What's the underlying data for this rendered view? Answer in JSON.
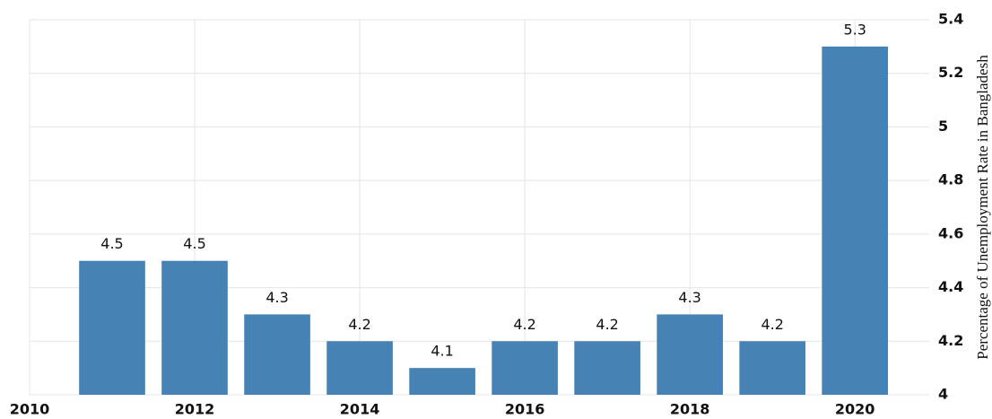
{
  "chart_data": {
    "type": "bar",
    "y_axis_label": "Percentage of Unemployment Rate in Bangladesh",
    "x": [
      2011,
      2012,
      2013,
      2014,
      2015,
      2016,
      2017,
      2018,
      2019,
      2020
    ],
    "values": [
      4.5,
      4.5,
      4.3,
      4.2,
      4.1,
      4.2,
      4.2,
      4.3,
      4.2,
      5.3
    ],
    "color": "#4682b4",
    "xlim": [
      2010,
      2020.9
    ],
    "xticks": [
      2010,
      2012,
      2014,
      2016,
      2018,
      2020
    ],
    "ylim": [
      4,
      5.4
    ],
    "yticks": [
      4,
      4.2,
      4.4,
      4.6,
      4.8,
      5,
      5.2,
      5.4
    ],
    "grid": true
  }
}
